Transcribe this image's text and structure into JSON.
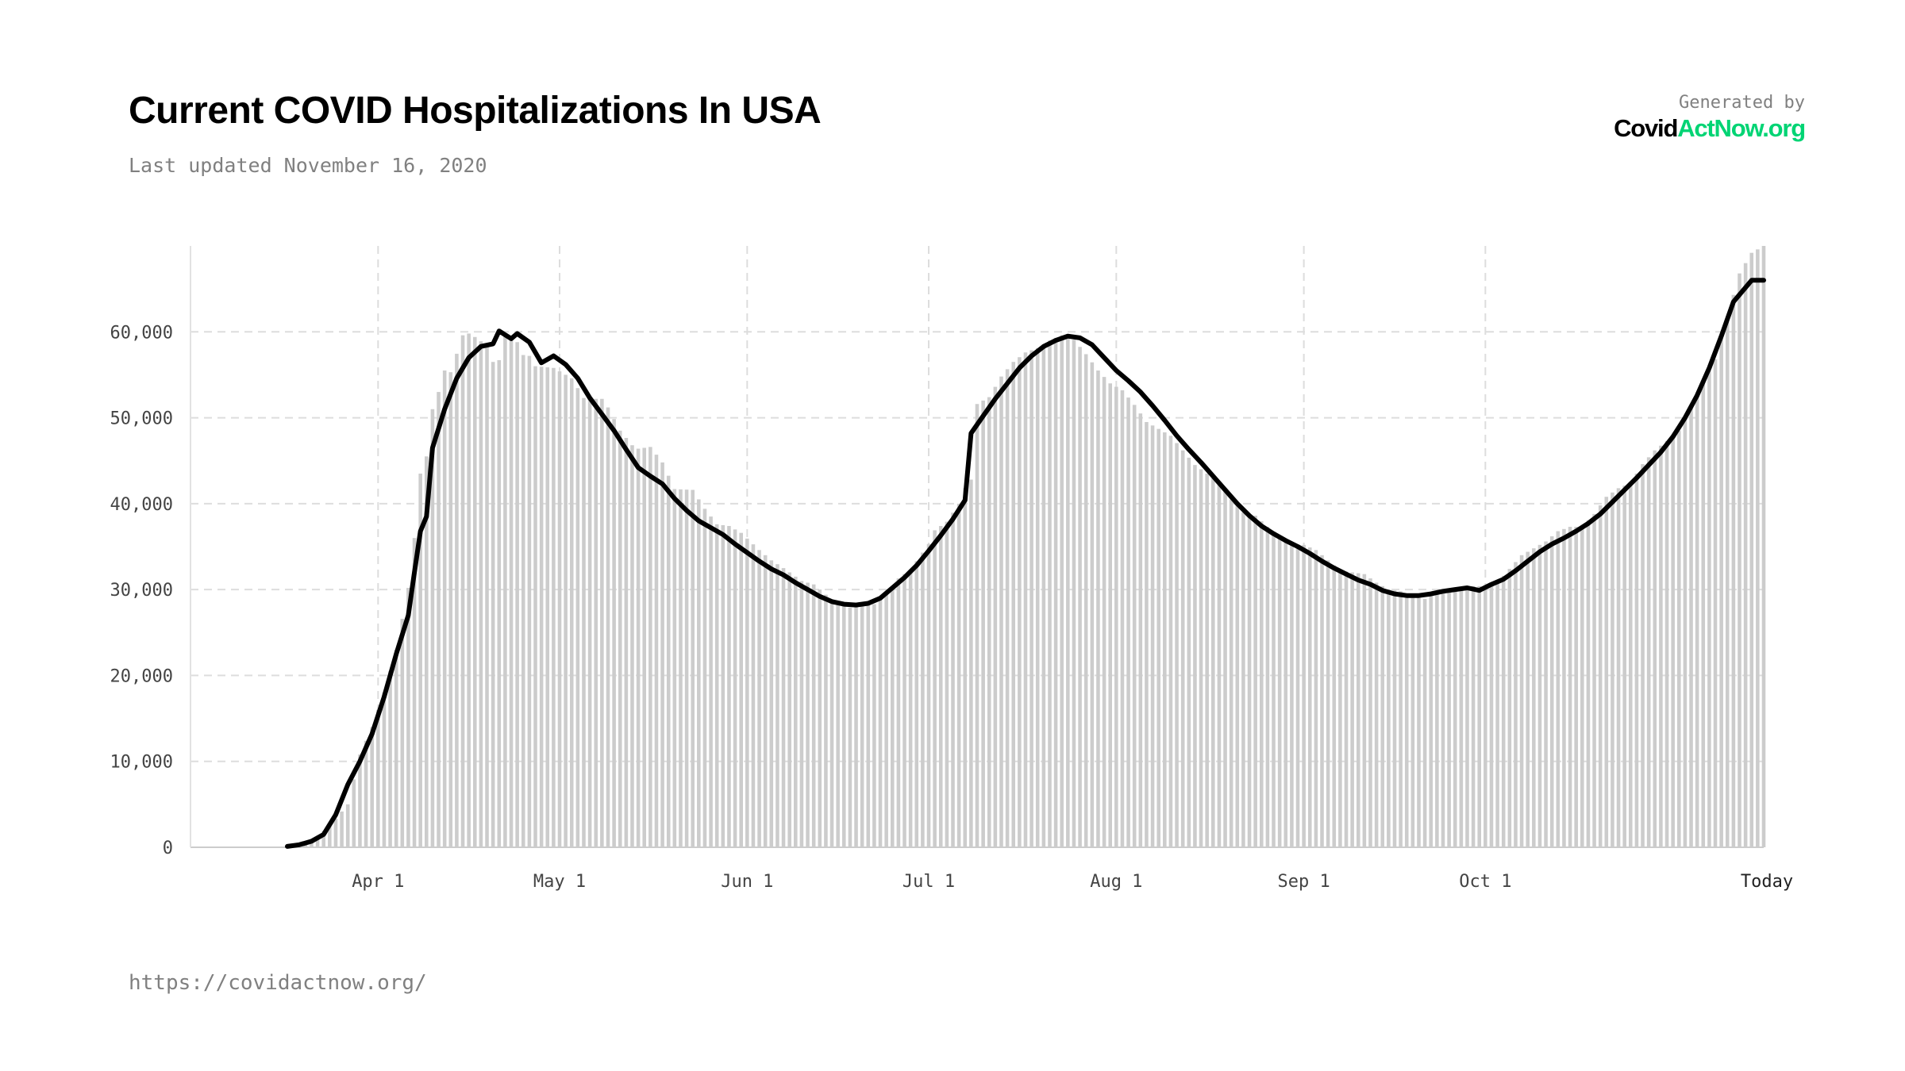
{
  "header": {
    "title": "Current COVID Hospitalizations In USA",
    "last_updated": "Last updated November 16, 2020"
  },
  "branding": {
    "generated_by": "Generated by",
    "brand_part1": "Covid",
    "brand_part2": "ActNow.org",
    "brand_accent_color": "#00d474"
  },
  "footer": {
    "url": "https://covidactnow.org/"
  },
  "chart_data": {
    "type": "bar",
    "title": "Current COVID Hospitalizations In USA",
    "xlabel": "",
    "ylabel": "",
    "ylim": [
      0,
      70000
    ],
    "x_range": [
      "2020-03-01",
      "2020-11-16"
    ],
    "grid": true,
    "y_ticks": [
      {
        "value": 0,
        "label": "0"
      },
      {
        "value": 10000,
        "label": "10,000"
      },
      {
        "value": 20000,
        "label": "20,000"
      },
      {
        "value": 30000,
        "label": "30,000"
      },
      {
        "value": 40000,
        "label": "40,000"
      },
      {
        "value": 50000,
        "label": "50,000"
      },
      {
        "value": 60000,
        "label": "60,000"
      }
    ],
    "x_ticks": [
      {
        "date": "2020-04-01",
        "label": "Apr 1"
      },
      {
        "date": "2020-05-01",
        "label": "May 1"
      },
      {
        "date": "2020-06-01",
        "label": "Jun 1"
      },
      {
        "date": "2020-07-01",
        "label": "Jul 1"
      },
      {
        "date": "2020-08-01",
        "label": "Aug 1"
      },
      {
        "date": "2020-09-01",
        "label": "Sep 1"
      },
      {
        "date": "2020-10-01",
        "label": "Oct 1"
      },
      {
        "date": "2020-11-16",
        "label": "Today"
      }
    ],
    "bar_color": "#cccccc",
    "line_color": "#000000",
    "series": [
      {
        "kind": "bars",
        "points": [
          [
            "2020-03-17",
            0
          ],
          [
            "2020-03-21",
            700
          ],
          [
            "2020-03-24",
            2500
          ],
          [
            "2020-03-27",
            5000
          ],
          [
            "2020-03-29",
            10800
          ],
          [
            "2020-03-31",
            14000
          ],
          [
            "2020-04-02",
            18000
          ],
          [
            "2020-04-04",
            23000
          ],
          [
            "2020-04-06",
            30200
          ],
          [
            "2020-04-07",
            36000
          ],
          [
            "2020-04-08",
            43500
          ],
          [
            "2020-04-09",
            45500
          ],
          [
            "2020-04-10",
            51000
          ],
          [
            "2020-04-11",
            53000
          ],
          [
            "2020-04-12",
            55500
          ],
          [
            "2020-04-13",
            55300
          ],
          [
            "2020-04-15",
            59600
          ],
          [
            "2020-04-16",
            59800
          ],
          [
            "2020-04-17",
            59400
          ],
          [
            "2020-04-19",
            58400
          ],
          [
            "2020-04-20",
            56500
          ],
          [
            "2020-04-21",
            56700
          ],
          [
            "2020-04-22",
            59800
          ],
          [
            "2020-04-24",
            58800
          ],
          [
            "2020-04-25",
            57300
          ],
          [
            "2020-04-26",
            57200
          ],
          [
            "2020-04-27",
            56000
          ],
          [
            "2020-04-30",
            55800
          ],
          [
            "2020-05-03",
            54600
          ],
          [
            "2020-05-05",
            52300
          ],
          [
            "2020-05-06",
            52200
          ],
          [
            "2020-05-08",
            52200
          ],
          [
            "2020-05-09",
            51200
          ],
          [
            "2020-05-11",
            48500
          ],
          [
            "2020-05-13",
            46800
          ],
          [
            "2020-05-14",
            46400
          ],
          [
            "2020-05-16",
            46600
          ],
          [
            "2020-05-18",
            44800
          ],
          [
            "2020-05-20",
            41700
          ],
          [
            "2020-05-23",
            41600
          ],
          [
            "2020-05-25",
            39400
          ],
          [
            "2020-05-27",
            37600
          ],
          [
            "2020-05-29",
            37400
          ],
          [
            "2020-05-31",
            36600
          ],
          [
            "2020-06-03",
            34600
          ],
          [
            "2020-06-05",
            33400
          ],
          [
            "2020-06-07",
            32500
          ],
          [
            "2020-06-10",
            31000
          ],
          [
            "2020-06-12",
            30600
          ],
          [
            "2020-06-14",
            29400
          ],
          [
            "2020-06-16",
            28300
          ],
          [
            "2020-06-18",
            27900
          ],
          [
            "2020-06-20",
            28400
          ],
          [
            "2020-06-22",
            28300
          ],
          [
            "2020-06-24",
            29400
          ],
          [
            "2020-06-26",
            31300
          ],
          [
            "2020-06-28",
            32300
          ],
          [
            "2020-06-30",
            34300
          ],
          [
            "2020-07-01",
            35300
          ],
          [
            "2020-07-02",
            36900
          ],
          [
            "2020-07-04",
            37900
          ],
          [
            "2020-07-06",
            40000
          ],
          [
            "2020-07-07",
            41800
          ],
          [
            "2020-07-08",
            42800
          ],
          [
            "2020-07-09",
            51600
          ],
          [
            "2020-07-11",
            52400
          ],
          [
            "2020-07-13",
            54800
          ],
          [
            "2020-07-15",
            56500
          ],
          [
            "2020-07-17",
            57600
          ],
          [
            "2020-07-19",
            58100
          ],
          [
            "2020-07-21",
            59000
          ],
          [
            "2020-07-23",
            59600
          ],
          [
            "2020-07-25",
            59100
          ],
          [
            "2020-07-27",
            57400
          ],
          [
            "2020-07-29",
            55500
          ],
          [
            "2020-07-31",
            54000
          ],
          [
            "2020-08-02",
            53200
          ],
          [
            "2020-08-04",
            51500
          ],
          [
            "2020-08-06",
            49500
          ],
          [
            "2020-08-08",
            48700
          ],
          [
            "2020-08-10",
            47900
          ],
          [
            "2020-08-12",
            46200
          ],
          [
            "2020-08-14",
            44500
          ],
          [
            "2020-08-16",
            43500
          ],
          [
            "2020-08-18",
            42400
          ],
          [
            "2020-08-20",
            40500
          ],
          [
            "2020-08-22",
            39000
          ],
          [
            "2020-08-24",
            38600
          ],
          [
            "2020-08-26",
            37300
          ],
          [
            "2020-08-28",
            36200
          ],
          [
            "2020-08-30",
            35200
          ],
          [
            "2020-09-01",
            35200
          ],
          [
            "2020-09-03",
            34600
          ],
          [
            "2020-09-05",
            33400
          ],
          [
            "2020-09-07",
            32200
          ],
          [
            "2020-09-09",
            32000
          ],
          [
            "2020-09-11",
            31800
          ],
          [
            "2020-09-13",
            30800
          ],
          [
            "2020-09-15",
            30000
          ],
          [
            "2020-09-17",
            29800
          ],
          [
            "2020-09-19",
            29300
          ],
          [
            "2020-09-21",
            28900
          ],
          [
            "2020-09-23",
            29800
          ],
          [
            "2020-09-26",
            29900
          ],
          [
            "2020-09-29",
            30400
          ],
          [
            "2020-10-01",
            30400
          ],
          [
            "2020-10-03",
            30800
          ],
          [
            "2020-10-05",
            32400
          ],
          [
            "2020-10-07",
            34000
          ],
          [
            "2020-10-09",
            34800
          ],
          [
            "2020-10-11",
            35600
          ],
          [
            "2020-10-13",
            36800
          ],
          [
            "2020-10-15",
            37300
          ],
          [
            "2020-10-17",
            37300
          ],
          [
            "2020-10-19",
            38800
          ],
          [
            "2020-10-21",
            40800
          ],
          [
            "2020-10-23",
            41800
          ],
          [
            "2020-10-25",
            42400
          ],
          [
            "2020-10-27",
            44600
          ],
          [
            "2020-10-29",
            46200
          ],
          [
            "2020-10-31",
            47300
          ],
          [
            "2020-11-02",
            48500
          ],
          [
            "2020-11-04",
            51400
          ],
          [
            "2020-11-06",
            54200
          ],
          [
            "2020-11-08",
            56800
          ],
          [
            "2020-11-10",
            61800
          ],
          [
            "2020-11-12",
            66800
          ],
          [
            "2020-11-14",
            69200
          ],
          [
            "2020-11-16",
            70000
          ]
        ]
      },
      {
        "kind": "line",
        "points": [
          [
            "2020-03-17",
            100
          ],
          [
            "2020-03-19",
            300
          ],
          [
            "2020-03-21",
            700
          ],
          [
            "2020-03-23",
            1500
          ],
          [
            "2020-03-25",
            3800
          ],
          [
            "2020-03-27",
            7300
          ],
          [
            "2020-03-29",
            10000
          ],
          [
            "2020-03-31",
            13200
          ],
          [
            "2020-04-02",
            17500
          ],
          [
            "2020-04-04",
            22500
          ],
          [
            "2020-04-06",
            27000
          ],
          [
            "2020-04-07",
            32000
          ],
          [
            "2020-04-08",
            36800
          ],
          [
            "2020-04-09",
            38500
          ],
          [
            "2020-04-10",
            46500
          ],
          [
            "2020-04-12",
            51000
          ],
          [
            "2020-04-14",
            54600
          ],
          [
            "2020-04-16",
            57000
          ],
          [
            "2020-04-18",
            58300
          ],
          [
            "2020-04-20",
            58600
          ],
          [
            "2020-04-21",
            60100
          ],
          [
            "2020-04-23",
            59200
          ],
          [
            "2020-04-24",
            59800
          ],
          [
            "2020-04-26",
            58800
          ],
          [
            "2020-04-28",
            56400
          ],
          [
            "2020-04-30",
            57200
          ],
          [
            "2020-05-02",
            56200
          ],
          [
            "2020-05-04",
            54600
          ],
          [
            "2020-05-06",
            52300
          ],
          [
            "2020-05-08",
            50400
          ],
          [
            "2020-05-10",
            48500
          ],
          [
            "2020-05-12",
            46300
          ],
          [
            "2020-05-14",
            44200
          ],
          [
            "2020-05-16",
            43200
          ],
          [
            "2020-05-18",
            42300
          ],
          [
            "2020-05-20",
            40600
          ],
          [
            "2020-05-22",
            39200
          ],
          [
            "2020-05-24",
            38000
          ],
          [
            "2020-05-26",
            37200
          ],
          [
            "2020-05-28",
            36400
          ],
          [
            "2020-05-30",
            35300
          ],
          [
            "2020-06-01",
            34300
          ],
          [
            "2020-06-03",
            33300
          ],
          [
            "2020-06-05",
            32400
          ],
          [
            "2020-06-07",
            31700
          ],
          [
            "2020-06-09",
            30800
          ],
          [
            "2020-06-11",
            30000
          ],
          [
            "2020-06-13",
            29200
          ],
          [
            "2020-06-15",
            28600
          ],
          [
            "2020-06-17",
            28300
          ],
          [
            "2020-06-19",
            28200
          ],
          [
            "2020-06-21",
            28400
          ],
          [
            "2020-06-23",
            29000
          ],
          [
            "2020-06-25",
            30200
          ],
          [
            "2020-06-27",
            31400
          ],
          [
            "2020-06-29",
            32800
          ],
          [
            "2020-07-01",
            34500
          ],
          [
            "2020-07-03",
            36300
          ],
          [
            "2020-07-05",
            38200
          ],
          [
            "2020-07-07",
            40400
          ],
          [
            "2020-07-08",
            48200
          ],
          [
            "2020-07-10",
            50200
          ],
          [
            "2020-07-12",
            52200
          ],
          [
            "2020-07-14",
            54000
          ],
          [
            "2020-07-16",
            55800
          ],
          [
            "2020-07-18",
            57200
          ],
          [
            "2020-07-20",
            58300
          ],
          [
            "2020-07-22",
            59000
          ],
          [
            "2020-07-24",
            59500
          ],
          [
            "2020-07-26",
            59300
          ],
          [
            "2020-07-28",
            58500
          ],
          [
            "2020-07-30",
            57000
          ],
          [
            "2020-08-01",
            55500
          ],
          [
            "2020-08-03",
            54300
          ],
          [
            "2020-08-05",
            53000
          ],
          [
            "2020-08-07",
            51400
          ],
          [
            "2020-08-09",
            49700
          ],
          [
            "2020-08-11",
            47900
          ],
          [
            "2020-08-13",
            46300
          ],
          [
            "2020-08-15",
            44800
          ],
          [
            "2020-08-17",
            43200
          ],
          [
            "2020-08-19",
            41600
          ],
          [
            "2020-08-21",
            40000
          ],
          [
            "2020-08-23",
            38600
          ],
          [
            "2020-08-25",
            37400
          ],
          [
            "2020-08-27",
            36500
          ],
          [
            "2020-08-29",
            35700
          ],
          [
            "2020-08-31",
            35000
          ],
          [
            "2020-09-02",
            34200
          ],
          [
            "2020-09-04",
            33300
          ],
          [
            "2020-09-06",
            32500
          ],
          [
            "2020-09-08",
            31800
          ],
          [
            "2020-09-10",
            31100
          ],
          [
            "2020-09-12",
            30600
          ],
          [
            "2020-09-14",
            29900
          ],
          [
            "2020-09-16",
            29500
          ],
          [
            "2020-09-18",
            29300
          ],
          [
            "2020-09-20",
            29300
          ],
          [
            "2020-09-22",
            29500
          ],
          [
            "2020-09-24",
            29800
          ],
          [
            "2020-09-26",
            30000
          ],
          [
            "2020-09-28",
            30200
          ],
          [
            "2020-09-30",
            29900
          ],
          [
            "2020-10-02",
            30600
          ],
          [
            "2020-10-04",
            31200
          ],
          [
            "2020-10-06",
            32200
          ],
          [
            "2020-10-08",
            33300
          ],
          [
            "2020-10-10",
            34400
          ],
          [
            "2020-10-12",
            35300
          ],
          [
            "2020-10-14",
            36000
          ],
          [
            "2020-10-16",
            36800
          ],
          [
            "2020-10-18",
            37700
          ],
          [
            "2020-10-20",
            38800
          ],
          [
            "2020-10-22",
            40200
          ],
          [
            "2020-10-24",
            41600
          ],
          [
            "2020-10-26",
            43000
          ],
          [
            "2020-10-28",
            44500
          ],
          [
            "2020-10-30",
            46000
          ],
          [
            "2020-11-01",
            47800
          ],
          [
            "2020-11-03",
            50000
          ],
          [
            "2020-11-05",
            52600
          ],
          [
            "2020-11-07",
            55800
          ],
          [
            "2020-11-09",
            59500
          ],
          [
            "2020-11-11",
            63500
          ],
          [
            "2020-11-14",
            66000
          ],
          [
            "2020-11-16",
            66000
          ]
        ]
      }
    ]
  }
}
